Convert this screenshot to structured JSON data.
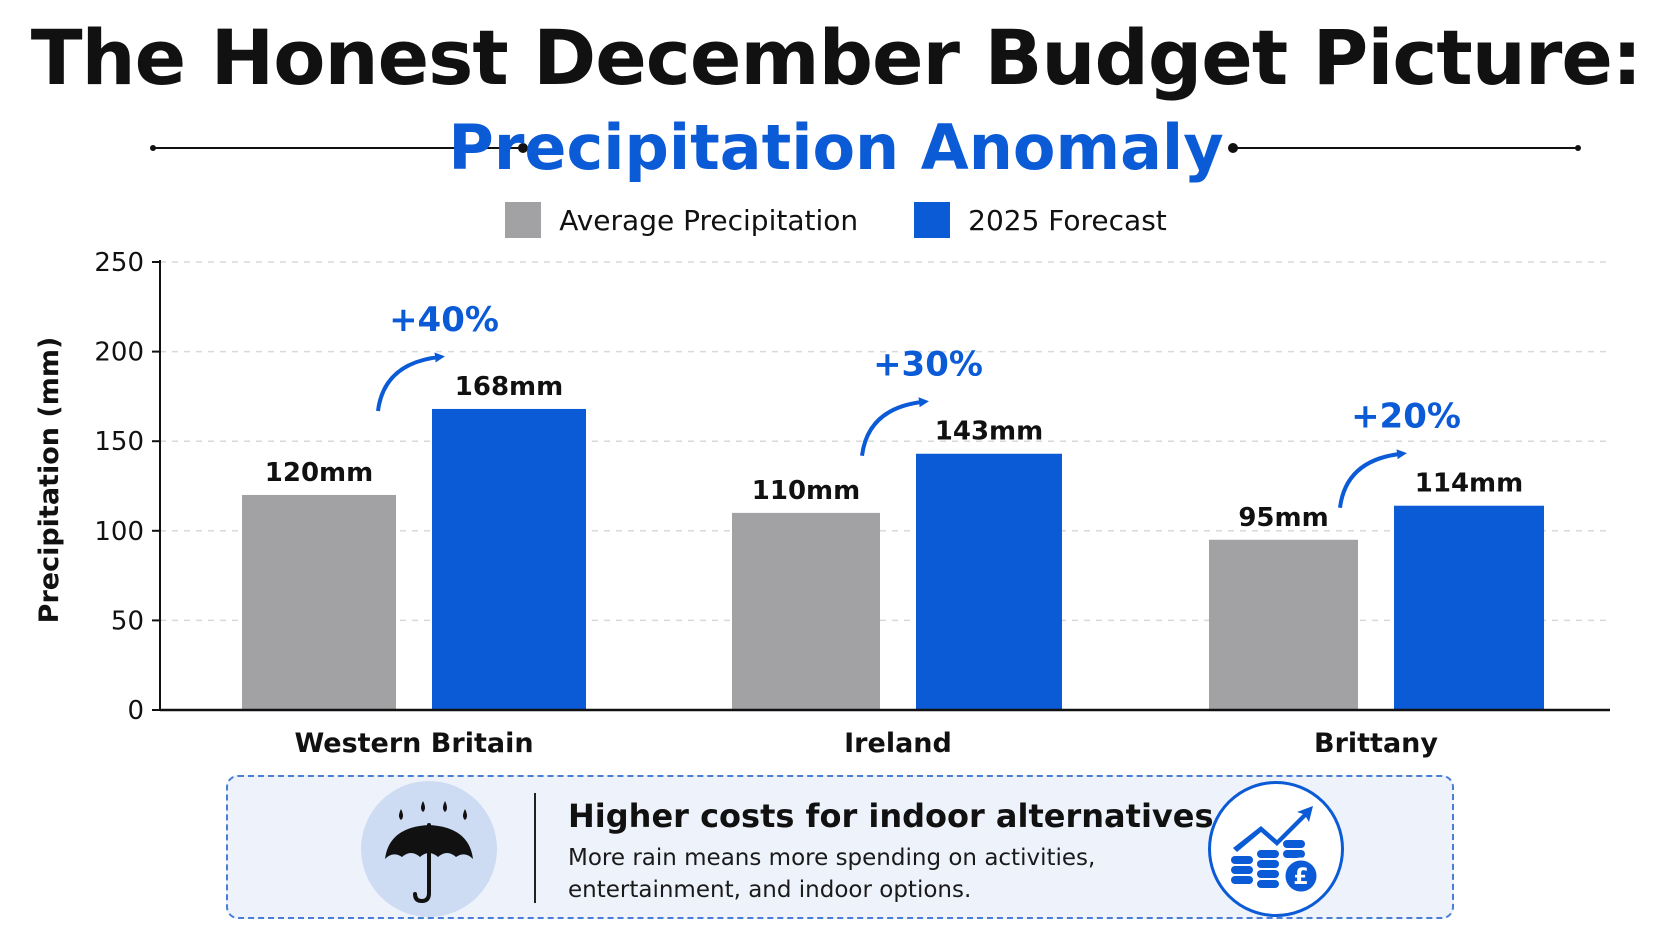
{
  "title": "The Honest December Budget Picture:",
  "subtitle": "Precipitation Anomaly",
  "colors": {
    "average": "#a2a2a4",
    "forecast": "#0b5ad6",
    "accent": "#0b5ad6",
    "text": "#111111"
  },
  "legend": [
    {
      "label": "Average Precipitation",
      "color": "#a2a2a4"
    },
    {
      "label": "2025 Forecast",
      "color": "#0b5ad6"
    }
  ],
  "chart_data": {
    "type": "bar",
    "ylabel": "Precipitation (mm)",
    "xlabel": "",
    "ylim": [
      0,
      250
    ],
    "yticks": [
      0,
      50,
      100,
      150,
      200,
      250
    ],
    "grid": true,
    "legend_position": "top-center",
    "categories": [
      "Western Britain",
      "Ireland",
      "Brittany"
    ],
    "series": [
      {
        "name": "Average Precipitation",
        "values": [
          120,
          110,
          95
        ],
        "labels": [
          "120mm",
          "110mm",
          "95mm"
        ]
      },
      {
        "name": "2025 Forecast",
        "values": [
          168,
          143,
          114
        ],
        "labels": [
          "168mm",
          "143mm",
          "114mm"
        ]
      }
    ],
    "annotations": [
      "+40%",
      "+30%",
      "+20%"
    ]
  },
  "callout": {
    "heading": "Higher costs for indoor alternatives",
    "body": "More rain means more spending on activities, entertainment, and indoor options.",
    "left_icon": "umbrella-rain-icon",
    "right_icon": "rising-cost-coins-icon"
  }
}
